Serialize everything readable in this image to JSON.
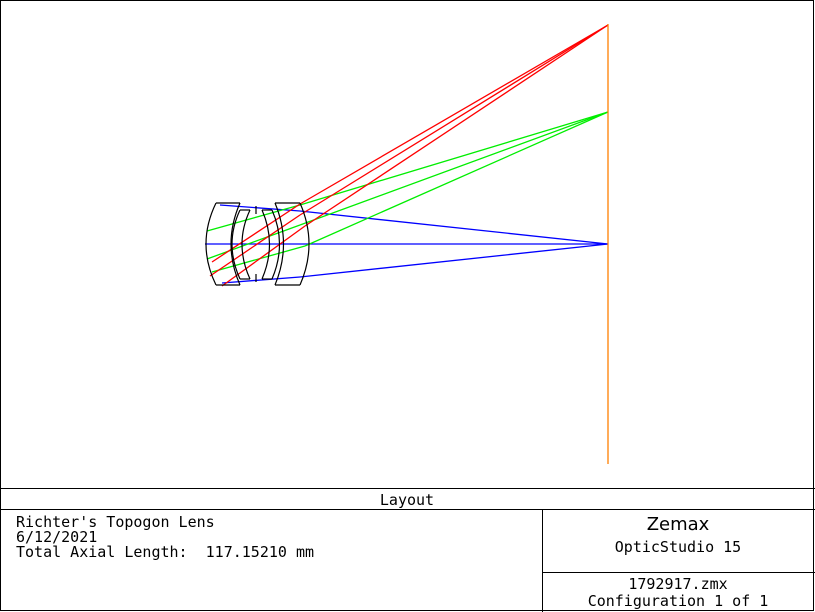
{
  "layout_title": "Layout",
  "lens_info": {
    "name": "Richter's Topogon Lens",
    "date": "6/12/2021",
    "total_axial_length_label": "Total Axial Length:",
    "total_axial_length_value": "117.15210 mm"
  },
  "brand": {
    "company": "Zemax",
    "product": "OpticStudio 15"
  },
  "file": {
    "filename": "1792917.zmx",
    "configuration": "Configuration 1 of 1"
  },
  "colors": {
    "field_on_axis": "#0000ff",
    "field_mid": "#00ee00",
    "field_max": "#ff0000",
    "image_plane": "#ff8000",
    "lens_outline": "#000000"
  }
}
